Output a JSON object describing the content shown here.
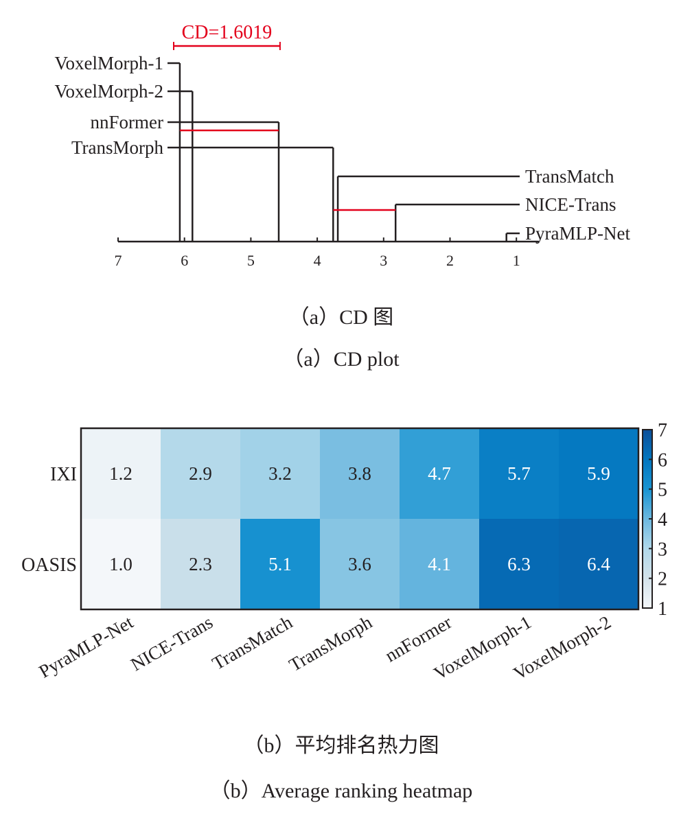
{
  "chart_data": [
    {
      "type": "cd-diagram",
      "cd_label": "CD=1.6019",
      "cd_value": 1.6019,
      "axis": {
        "range": [
          7,
          1
        ],
        "ticks": [
          7,
          6,
          5,
          4,
          3,
          2,
          1
        ],
        "reversed": true
      },
      "methods": [
        {
          "name": "VoxelMorph-1",
          "rank": 6.07,
          "side": "left"
        },
        {
          "name": "VoxelMorph-2",
          "rank": 5.88,
          "side": "left"
        },
        {
          "name": "nnFormer",
          "rank": 4.58,
          "side": "left"
        },
        {
          "name": "TransMorph",
          "rank": 3.76,
          "side": "left"
        },
        {
          "name": "TransMatch",
          "rank": 3.69,
          "side": "right"
        },
        {
          "name": "NICE-Trans",
          "rank": 2.82,
          "side": "right"
        },
        {
          "name": "PyraMLP-Net",
          "rank": 1.15,
          "side": "right"
        }
      ],
      "cliques": [
        [
          6.07,
          4.58
        ],
        [
          3.76,
          2.82
        ]
      ],
      "colors": {
        "cd": "#e3001b",
        "line": "#231f20"
      },
      "caption_cn": "（a）CD 图",
      "caption_en": "（a）CD plot"
    },
    {
      "type": "heatmap",
      "rows": [
        "IXI",
        "OASIS"
      ],
      "columns": [
        "PyraMLP-Net",
        "NICE-Trans",
        "TransMatch",
        "TransMorph",
        "nnFormer",
        "VoxelMorph-1",
        "VoxelMorph-2"
      ],
      "values": [
        [
          "1.2",
          "2.9",
          "3.2",
          "3.8",
          "4.7",
          "5.7",
          "5.9"
        ],
        [
          "1.0",
          "2.3",
          "5.1",
          "3.6",
          "4.1",
          "6.3",
          "6.4"
        ]
      ],
      "colorbar": {
        "range": [
          1,
          7
        ],
        "ticks": [
          "1",
          "2",
          "3",
          "4",
          "5",
          "6",
          "7"
        ]
      },
      "colormap": [
        "#f4f7fa",
        "#d3e2ea",
        "#b0d8ea",
        "#6cb8df",
        "#1994d2",
        "#0376bf",
        "#0c4f99"
      ],
      "caption_cn": "（b）平均排名热力图",
      "caption_en": "（b）Average ranking heatmap"
    }
  ]
}
